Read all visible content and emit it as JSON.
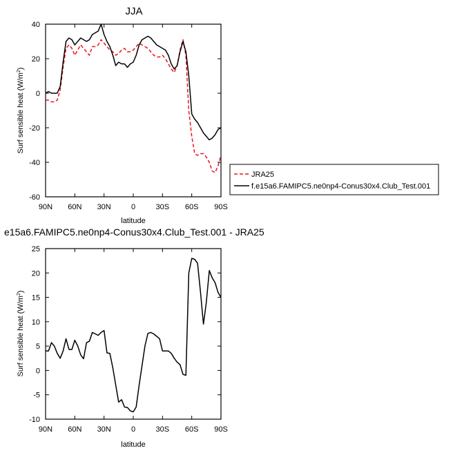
{
  "chart_data": [
    {
      "type": "line",
      "title": "JJA",
      "ylabel_main": "Surf sensible heat (W/m",
      "ylabel_sup": "2",
      "ylabel_end": ")",
      "xlabel": "latitude",
      "xlim": [
        90,
        -90
      ],
      "ylim": [
        -60,
        40
      ],
      "xticks": [
        90,
        60,
        30,
        0,
        -30,
        -60,
        -90
      ],
      "xtick_labels": [
        "90N",
        "60N",
        "30N",
        "0",
        "30S",
        "60S",
        "90S"
      ],
      "yticks": [
        -60,
        -40,
        -20,
        0,
        20,
        40
      ],
      "ytick_labels": [
        "-60",
        "-40",
        "-20",
        "0",
        "20",
        "40"
      ],
      "legend_position": "right",
      "series": [
        {
          "name": "JRA25",
          "color": "#e8141b",
          "dash": "dashed",
          "x": [
            90,
            87,
            84,
            81,
            78,
            75,
            72,
            69,
            66,
            63,
            60,
            57,
            54,
            51,
            48,
            45,
            42,
            39,
            36,
            33,
            30,
            27,
            24,
            21,
            18,
            15,
            12,
            9,
            6,
            3,
            0,
            -3,
            -6,
            -9,
            -12,
            -15,
            -18,
            -21,
            -24,
            -27,
            -30,
            -33,
            -36,
            -39,
            -42,
            -45,
            -48,
            -51,
            -54,
            -57,
            -60,
            -63,
            -66,
            -69,
            -72,
            -75,
            -78,
            -81,
            -84,
            -87,
            -90
          ],
          "y": [
            -4,
            -4,
            -5,
            -5,
            -4,
            2,
            15,
            26,
            28,
            26,
            22,
            25,
            28,
            26,
            24,
            22,
            27,
            27,
            28,
            31,
            29,
            27,
            25,
            24,
            22,
            23,
            25,
            26,
            24,
            24,
            25,
            27,
            29,
            28,
            27,
            26,
            24,
            22,
            21,
            21,
            22,
            20,
            17,
            14,
            12,
            16,
            25,
            31,
            22,
            -10,
            -25,
            -35,
            -36,
            -35,
            -35,
            -37,
            -40,
            -45,
            -46,
            -42,
            -36
          ]
        },
        {
          "name": "f.e15a6.FAMIPC5.ne0np4-Conus30x4.Club_Test.001",
          "color": "#000000",
          "dash": "solid",
          "x": [
            90,
            87,
            84,
            81,
            78,
            75,
            72,
            69,
            66,
            63,
            60,
            57,
            54,
            51,
            48,
            45,
            42,
            39,
            36,
            33,
            30,
            27,
            24,
            21,
            18,
            15,
            12,
            9,
            6,
            3,
            0,
            -3,
            -6,
            -9,
            -12,
            -15,
            -18,
            -21,
            -24,
            -27,
            -30,
            -33,
            -36,
            -39,
            -42,
            -45,
            -48,
            -51,
            -54,
            -57,
            -60,
            -63,
            -66,
            -69,
            -72,
            -75,
            -78,
            -81,
            -84,
            -87,
            -90
          ],
          "y": [
            0,
            1,
            0,
            0,
            0,
            4,
            18,
            30,
            32,
            31,
            28,
            30,
            32,
            31,
            30,
            31,
            34,
            35,
            36,
            40,
            34,
            30,
            27,
            22,
            16,
            18,
            17,
            17,
            15,
            17,
            18,
            22,
            28,
            31,
            32,
            33,
            32,
            30,
            28,
            27,
            26,
            25,
            22,
            17,
            14,
            16,
            24,
            30,
            24,
            10,
            -12,
            -15,
            -17,
            -20,
            -23,
            -25,
            -27,
            -26,
            -24,
            -21,
            -20
          ]
        }
      ]
    },
    {
      "type": "line",
      "title": "e15a6.FAMIPC5.ne0np4-Conus30x4.Club_Test.001 - JRA25",
      "ylabel_main": "Surf sensible heat (W/m",
      "ylabel_sup": "2",
      "ylabel_end": ")",
      "xlabel": "latitude",
      "xlim": [
        90,
        -90
      ],
      "ylim": [
        -10,
        25
      ],
      "xticks": [
        90,
        60,
        30,
        0,
        -30,
        -60,
        -90
      ],
      "xtick_labels": [
        "90N",
        "60N",
        "30N",
        "0",
        "30S",
        "60S",
        "90S"
      ],
      "yticks": [
        -10,
        -5,
        0,
        5,
        10,
        15,
        20,
        25
      ],
      "ytick_labels": [
        "-10",
        "-5",
        "0",
        "5",
        "10",
        "15",
        "20",
        "25"
      ],
      "series": [
        {
          "name": "",
          "color": "#000000",
          "dash": "solid",
          "x": [
            90,
            87,
            84,
            81,
            78,
            75,
            72,
            69,
            66,
            63,
            60,
            57,
            54,
            51,
            48,
            45,
            42,
            39,
            36,
            33,
            30,
            27,
            24,
            21,
            18,
            15,
            12,
            9,
            6,
            3,
            0,
            -3,
            -6,
            -9,
            -12,
            -15,
            -18,
            -21,
            -24,
            -27,
            -30,
            -33,
            -36,
            -39,
            -42,
            -45,
            -48,
            -51,
            -54,
            -57,
            -60,
            -63,
            -66,
            -69,
            -72,
            -75,
            -78,
            -81,
            -84,
            -87,
            -90
          ],
          "y": [
            4,
            4,
            5.7,
            5,
            3.5,
            2.5,
            4,
            6.5,
            4.3,
            4.3,
            6.2,
            5,
            3.2,
            2.4,
            5.7,
            6,
            7.8,
            7.5,
            7.2,
            7.8,
            8.2,
            3.6,
            3.5,
            0.5,
            -3,
            -6.5,
            -6,
            -7.5,
            -7.6,
            -8.3,
            -8.5,
            -7.5,
            -3,
            1,
            5,
            7.6,
            7.8,
            7.5,
            7,
            6.5,
            4,
            4,
            4,
            3.5,
            2.5,
            1.7,
            1.2,
            -0.8,
            -1,
            20,
            23,
            22.8,
            22,
            16,
            9.5,
            14,
            20.5,
            19,
            18,
            16,
            15
          ]
        }
      ]
    }
  ]
}
